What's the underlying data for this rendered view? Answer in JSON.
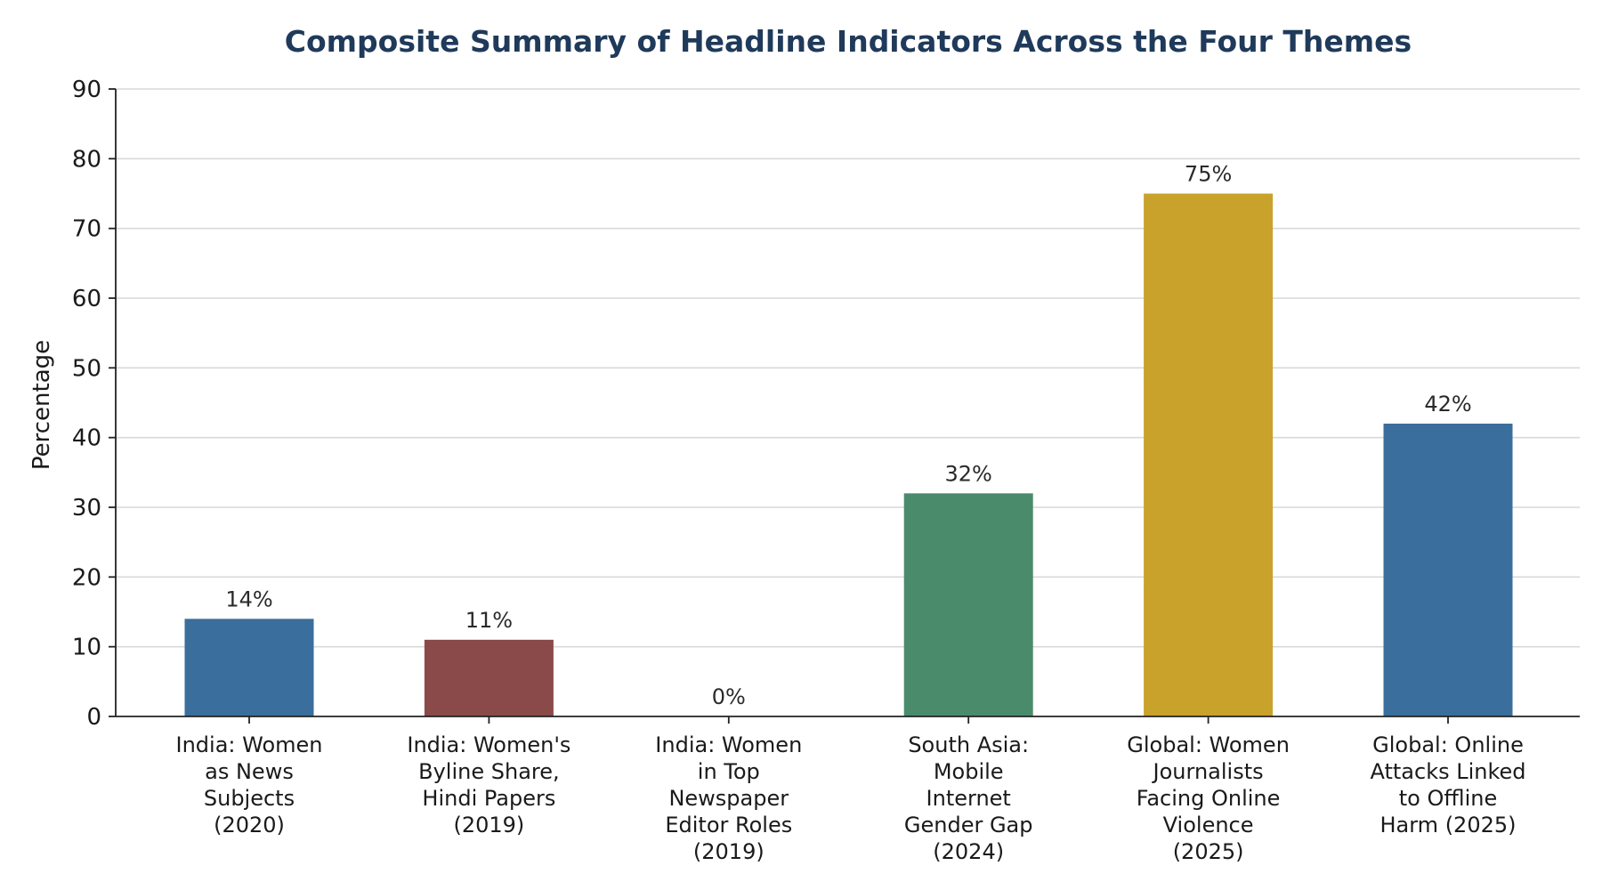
{
  "chart_data": {
    "type": "bar",
    "title": "Composite Summary of Headline Indicators Across the Four Themes",
    "xlabel": "",
    "ylabel": "Percentage",
    "ylim": [
      0,
      90
    ],
    "yticks": [
      0,
      10,
      20,
      30,
      40,
      50,
      60,
      70,
      80,
      90
    ],
    "grid": "horizontal",
    "categories": [
      [
        "India: Women",
        "as News",
        "Subjects",
        "(2020)"
      ],
      [
        "India: Women's",
        "Byline Share,",
        "Hindi Papers",
        "(2019)"
      ],
      [
        "India: Women",
        "in Top",
        "Newspaper",
        "Editor Roles",
        "(2019)"
      ],
      [
        "South Asia:",
        "Mobile",
        "Internet",
        "Gender Gap",
        "(2024)"
      ],
      [
        "Global: Women",
        "Journalists",
        "Facing Online",
        "Violence",
        "(2025)"
      ],
      [
        "Global: Online",
        "Attacks Linked",
        "to Offline",
        "Harm (2025)"
      ]
    ],
    "values": [
      14,
      11,
      0,
      32,
      75,
      42
    ],
    "value_labels": [
      "14%",
      "11%",
      "0%",
      "32%",
      "75%",
      "42%"
    ],
    "colors": [
      "#3a6e9c",
      "#8a4a4a",
      "#3a6e9c",
      "#4a8b6c",
      "#c9a22b",
      "#3a6e9c"
    ]
  }
}
